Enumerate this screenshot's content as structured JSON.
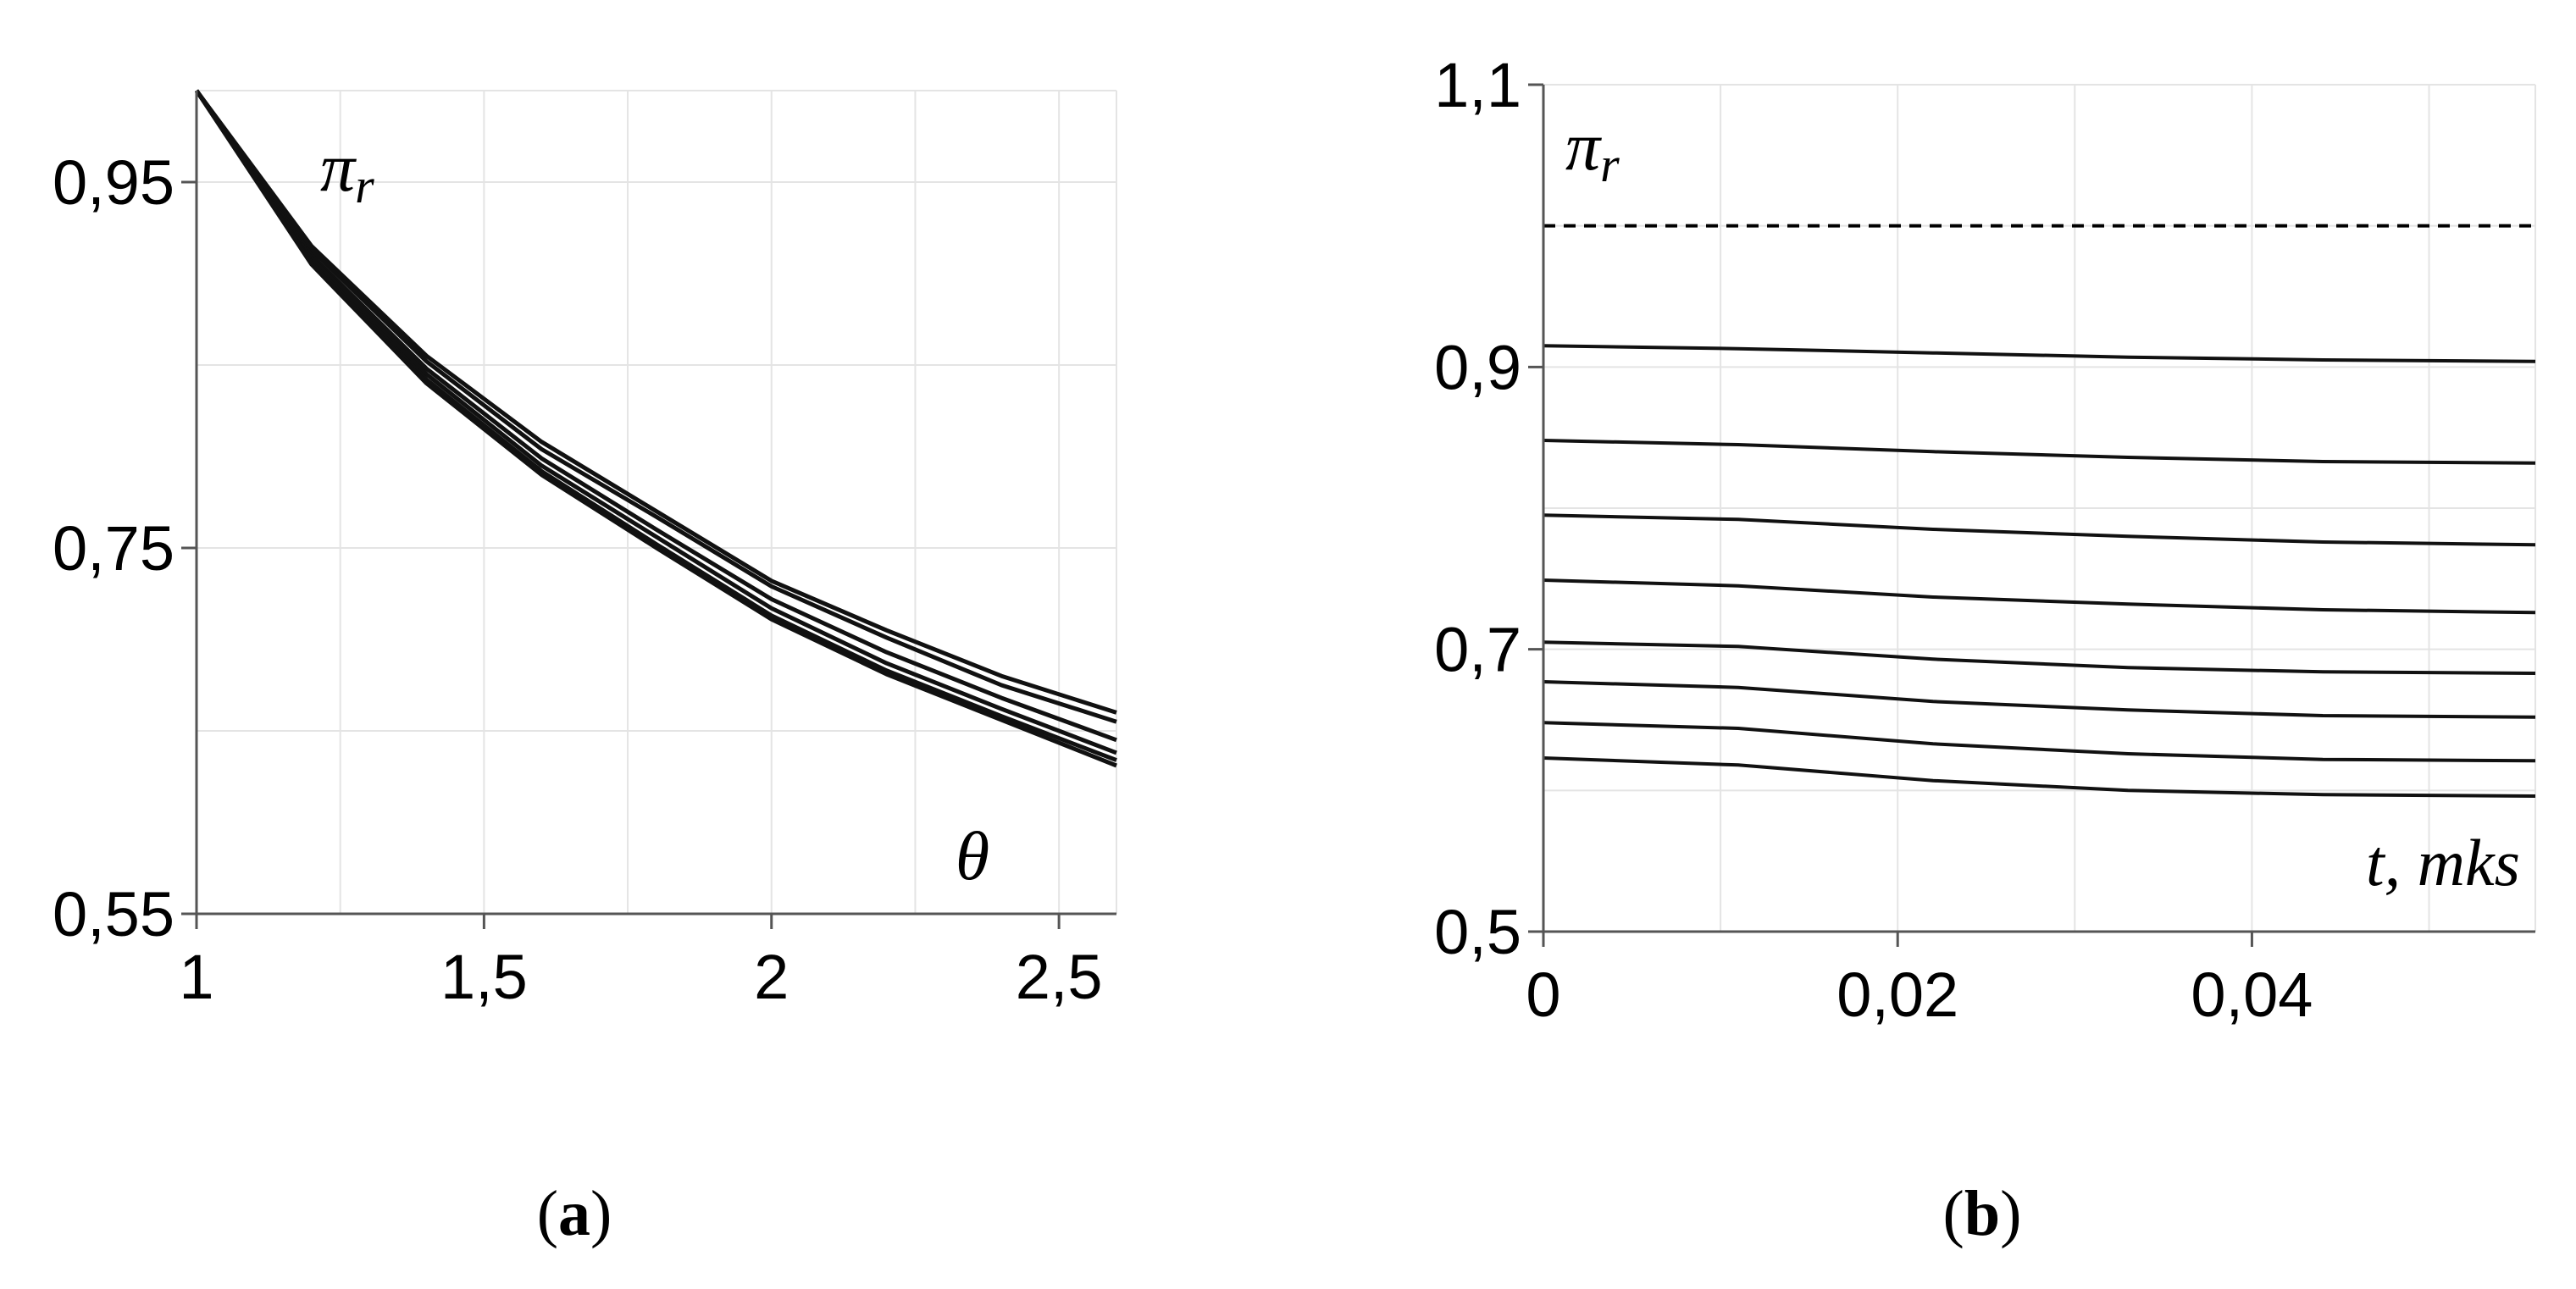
{
  "chart_data": [
    {
      "panel": "a",
      "type": "line",
      "caption": {
        "open": "(",
        "letter": "a",
        "close": ")"
      },
      "annotations": {
        "series_label": "π",
        "series_label_sub": "r",
        "x_label": "θ"
      },
      "xlim": [
        1,
        2.6
      ],
      "ylim": [
        0.55,
        1.0
      ],
      "x_ticks": [
        1,
        1.5,
        2,
        2.5
      ],
      "x_tick_labels": [
        "1",
        "1,5",
        "2",
        "2,5"
      ],
      "y_ticks": [
        0.55,
        0.75,
        0.95
      ],
      "y_tick_labels": [
        "0,55",
        "0,75",
        "0,95"
      ],
      "grid": true,
      "x": [
        1.0,
        1.2,
        1.4,
        1.6,
        1.8,
        2.0,
        2.2,
        2.4,
        2.6
      ],
      "series": [
        {
          "values": [
            1.0,
            0.915,
            0.855,
            0.808,
            0.77,
            0.732,
            0.705,
            0.68,
            0.66
          ]
        },
        {
          "values": [
            1.0,
            0.913,
            0.852,
            0.804,
            0.767,
            0.729,
            0.701,
            0.675,
            0.655
          ]
        },
        {
          "values": [
            1.0,
            0.91,
            0.848,
            0.799,
            0.76,
            0.722,
            0.693,
            0.668,
            0.645
          ]
        },
        {
          "values": [
            1.0,
            0.908,
            0.845,
            0.795,
            0.756,
            0.717,
            0.687,
            0.662,
            0.638
          ]
        },
        {
          "values": [
            1.0,
            0.906,
            0.842,
            0.792,
            0.752,
            0.713,
            0.683,
            0.658,
            0.634
          ]
        },
        {
          "values": [
            1.0,
            0.905,
            0.84,
            0.79,
            0.75,
            0.711,
            0.681,
            0.656,
            0.631
          ]
        }
      ]
    },
    {
      "panel": "b",
      "type": "line",
      "caption": {
        "open": "(",
        "letter": "b",
        "close": ")"
      },
      "annotations": {
        "series_label": "π",
        "series_label_sub": "r",
        "x_label": "t, mks"
      },
      "xlim": [
        0,
        0.056
      ],
      "ylim": [
        0.5,
        1.1
      ],
      "x_ticks": [
        0,
        0.02,
        0.04
      ],
      "x_tick_labels": [
        "0",
        "0,02",
        "0,04"
      ],
      "y_ticks": [
        0.5,
        0.7,
        0.9,
        1.1
      ],
      "y_tick_labels": [
        "0,5",
        "0,7",
        "0,9",
        "1,1"
      ],
      "grid": true,
      "dashed_reference": 1.0,
      "x": [
        0,
        0.011,
        0.022,
        0.033,
        0.044,
        0.056
      ],
      "series": [
        {
          "values": [
            0.915,
            0.913,
            0.91,
            0.907,
            0.905,
            0.904
          ]
        },
        {
          "values": [
            0.848,
            0.845,
            0.84,
            0.836,
            0.833,
            0.832
          ]
        },
        {
          "values": [
            0.795,
            0.792,
            0.785,
            0.78,
            0.776,
            0.774
          ]
        },
        {
          "values": [
            0.749,
            0.745,
            0.737,
            0.732,
            0.728,
            0.726
          ]
        },
        {
          "values": [
            0.705,
            0.702,
            0.693,
            0.687,
            0.684,
            0.683
          ]
        },
        {
          "values": [
            0.677,
            0.673,
            0.663,
            0.657,
            0.653,
            0.652
          ]
        },
        {
          "values": [
            0.648,
            0.644,
            0.633,
            0.626,
            0.622,
            0.621
          ]
        },
        {
          "values": [
            0.623,
            0.618,
            0.607,
            0.6,
            0.597,
            0.596
          ]
        }
      ]
    }
  ]
}
